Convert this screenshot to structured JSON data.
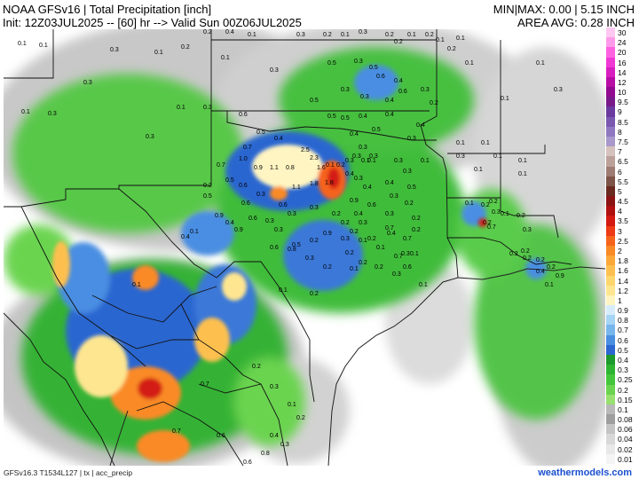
{
  "header": {
    "title": "NOAA GFSv16 | Total Precipitation [inch]",
    "init": "Init: 12Z03JUL2025 -- [60] hr --> Valid Sun 00Z06JUL2025",
    "minmax": "MIN|MAX: 0.00 | 5.15 INCH",
    "area_avg": "AREA AVG: 0.28 INCH"
  },
  "colorbar": {
    "items": [
      {
        "label": "30",
        "color": "#ffc8f2"
      },
      {
        "label": "24",
        "color": "#ff9aea"
      },
      {
        "label": "20",
        "color": "#ff62e0"
      },
      {
        "label": "16",
        "color": "#f038d4"
      },
      {
        "label": "14",
        "color": "#d81ec0"
      },
      {
        "label": "12",
        "color": "#b80ea6"
      },
      {
        "label": "10",
        "color": "#920a90"
      },
      {
        "label": "9.5",
        "color": "#7a1a8a"
      },
      {
        "label": "9",
        "color": "#6a3a9e"
      },
      {
        "label": "8.5",
        "color": "#7a58b0"
      },
      {
        "label": "8",
        "color": "#9078c0"
      },
      {
        "label": "7.5",
        "color": "#a898cc"
      },
      {
        "label": "7",
        "color": "#d6c2bc"
      },
      {
        "label": "6.5",
        "color": "#bca09a"
      },
      {
        "label": "6",
        "color": "#9e7c74"
      },
      {
        "label": "5.5",
        "color": "#7e5448"
      },
      {
        "label": "5",
        "color": "#6a2a20"
      },
      {
        "label": "4.5",
        "color": "#8a1414"
      },
      {
        "label": "4",
        "color": "#b01010"
      },
      {
        "label": "3.5",
        "color": "#d41a12"
      },
      {
        "label": "3",
        "color": "#ee3a16"
      },
      {
        "label": "2.5",
        "color": "#f6641c"
      },
      {
        "label": "2",
        "color": "#fa8a26"
      },
      {
        "label": "1.8",
        "color": "#fca838"
      },
      {
        "label": "1.6",
        "color": "#fdc050"
      },
      {
        "label": "1.4",
        "color": "#fed66e"
      },
      {
        "label": "1.2",
        "color": "#fee690"
      },
      {
        "label": "1",
        "color": "#fff5c2"
      },
      {
        "label": "0.9",
        "color": "#d6ecfa"
      },
      {
        "label": "0.8",
        "color": "#a6d4f4"
      },
      {
        "label": "0.7",
        "color": "#76b6ec"
      },
      {
        "label": "0.6",
        "color": "#4a8ee2"
      },
      {
        "label": "0.5",
        "color": "#2c66d0"
      },
      {
        "label": "0.4",
        "color": "#1c9a2c"
      },
      {
        "label": "0.3",
        "color": "#2cb432"
      },
      {
        "label": "0.25",
        "color": "#44c63c"
      },
      {
        "label": "0.2",
        "color": "#6ad450"
      },
      {
        "label": "0.15",
        "color": "#98e070"
      },
      {
        "label": "0.1",
        "color": "#b8b8b8"
      },
      {
        "label": "0.08",
        "color": "#9e9e9e"
      },
      {
        "label": "0.06",
        "color": "#c4c4c4"
      },
      {
        "label": "0.04",
        "color": "#d8d8d8"
      },
      {
        "label": "0.02",
        "color": "#e8e8e8"
      },
      {
        "label": "0.01",
        "color": "#f4f4f4"
      }
    ]
  },
  "map_labels": [
    "0.2",
    "0.4",
    "0.1",
    "0.3",
    "0.2",
    "0.1",
    "0.3",
    "0.2",
    "0.1",
    "0.2",
    "0.1",
    "0.2",
    "0.1",
    "0.2",
    "0.1",
    "0.1",
    "0.1",
    "0.1",
    "0.3",
    "0.3",
    "0.3",
    "0.1",
    "0.3",
    "0.2",
    "0.3",
    "0.1",
    "0.3",
    "0.1",
    "0.1",
    "0.3",
    "0.1",
    "0.1",
    "0.5",
    "0.3",
    "0.5",
    "0.6",
    "0.4",
    "0.3",
    "0.3",
    "0.4",
    "0.4",
    "0.4",
    "0.5",
    "0.6",
    "0.3",
    "0.2",
    "0.4",
    "0.3",
    "0.6",
    "0.5",
    "0.4",
    "0.7",
    "0.5",
    "0.5",
    "0.5",
    "0.4",
    "0.3",
    "0.1",
    "0.1",
    "1.0",
    "0.7",
    "0.9",
    "1.1",
    "0.8",
    "0.3",
    "0.1",
    "0.2",
    "0.3",
    "0.1",
    "0.3",
    "0.3",
    "0.3",
    "0.1",
    "0.1",
    "0.1",
    "0.1",
    "0.3",
    "0.1",
    "2.5",
    "2.3",
    "1.6",
    "1.8",
    "1.1",
    "1.8",
    "0.4",
    "0.3",
    "0.4",
    "0.4",
    "0.5",
    "0.3",
    "0.2",
    "0.5",
    "0.6",
    "0.3",
    "0.6",
    "0.3",
    "0.3",
    "0.2",
    "0.2",
    "0.2",
    "0.1",
    "0.1",
    "0.7",
    "0.6",
    "0.5",
    "0.6",
    "0.9",
    "0.9",
    "0.3",
    "0.9",
    "0.6",
    "0.4",
    "0.3",
    "0.3",
    "0.2",
    "0.2",
    "0.7",
    "0.7",
    "0.4",
    "0.1",
    "0.4",
    "0.6",
    "0.3",
    "0.2",
    "0.9",
    "0.3",
    "0.2",
    "0.2",
    "0.4",
    "0.2",
    "0.6",
    "0.5",
    "0.8",
    "0.3",
    "0.2",
    "0.1",
    "0.2",
    "0.3",
    "0.1",
    "0.2",
    "0.3",
    "0.1",
    "0.2",
    "0.1",
    "0.1",
    "0.1",
    "0.2",
    "0.2",
    "0.1",
    "0.2",
    "0.3",
    "0.2",
    "0.2",
    "0.2",
    "0.2",
    "0.2",
    "0.9",
    "0.1",
    "0.2",
    "0.3",
    "0.4",
    "0.7",
    "0.7",
    "0.2",
    "0.3",
    "0.1",
    "0.2",
    "0.4",
    "0.3",
    "0.8",
    "0.6",
    "0.7",
    "0.6"
  ],
  "footer": {
    "left": "GFSv16.3 T1534L127 | tx | acc_precip",
    "right": "weathermodels.com"
  }
}
